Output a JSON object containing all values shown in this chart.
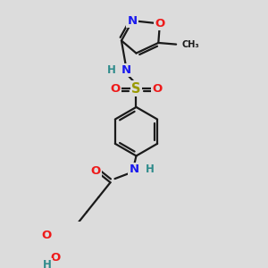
{
  "background_color": "#dcdcdc",
  "bond_color": "#1a1a1a",
  "bond_width": 1.6,
  "atom_colors": {
    "C": "#1a1a1a",
    "H": "#2e8b8b",
    "N": "#1a1aee",
    "O": "#ee1a1a",
    "S": "#999900"
  },
  "font_size": 8.5,
  "fig_size": [
    3.0,
    3.0
  ],
  "dpi": 100,
  "background_hex": "#dcdcdc"
}
